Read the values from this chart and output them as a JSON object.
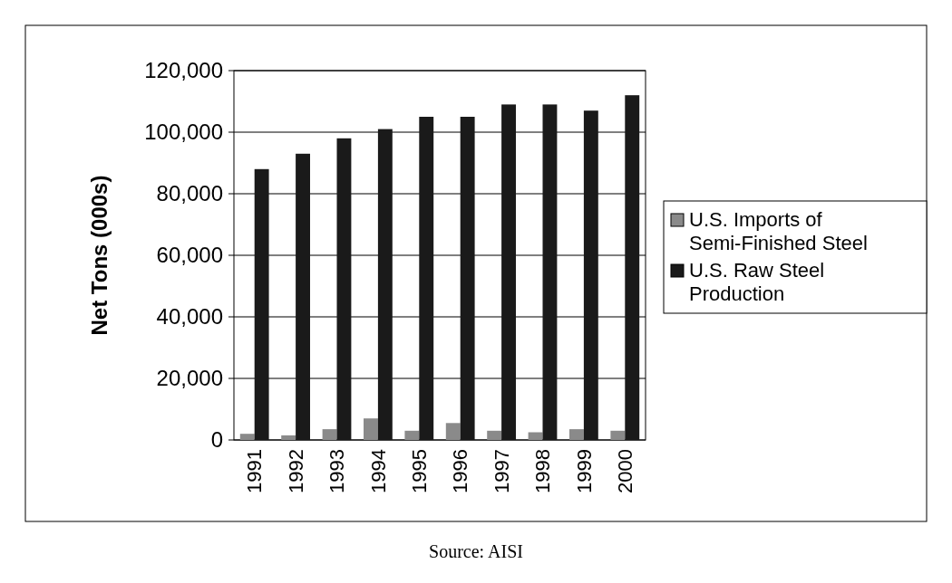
{
  "chart_data": {
    "type": "bar",
    "ylabel": "Net Tons (000s)",
    "categories": [
      "1991",
      "1992",
      "1993",
      "1994",
      "1995",
      "1996",
      "1997",
      "1998",
      "1999",
      "2000"
    ],
    "series": [
      {
        "name": "U.S. Imports of Semi-Finished Steel",
        "color": "#8a8a8a",
        "values": [
          2000,
          1500,
          3500,
          7000,
          3000,
          5500,
          3000,
          2500,
          3500,
          3000
        ]
      },
      {
        "name": "U.S. Raw Steel Production",
        "color": "#1a1a1a",
        "values": [
          88000,
          93000,
          98000,
          101000,
          105000,
          105000,
          109000,
          109000,
          107000,
          112000
        ]
      }
    ],
    "ylim": [
      0,
      120000
    ],
    "yticks": [
      {
        "value": 0,
        "label": "0"
      },
      {
        "value": 20000,
        "label": "20,000"
      },
      {
        "value": 40000,
        "label": "40,000"
      },
      {
        "value": 60000,
        "label": "60,000"
      },
      {
        "value": 80000,
        "label": "80,000"
      },
      {
        "value": 100000,
        "label": "100,000"
      },
      {
        "value": 120000,
        "label": "120,000"
      }
    ],
    "grid": "y",
    "legend": "right",
    "annotations": [
      "Source: AISI"
    ]
  }
}
